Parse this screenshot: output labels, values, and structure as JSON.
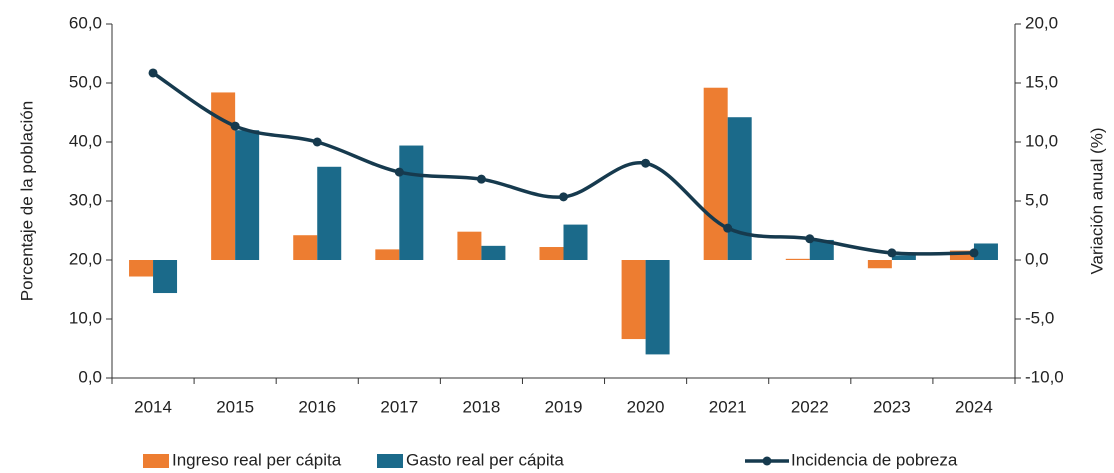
{
  "chart_data": {
    "type": "bar_line",
    "y_label": "Porcentaje de la población",
    "y2_label": "Variación anual (%)",
    "categories": [
      "2014",
      "2015",
      "2016",
      "2017",
      "2018",
      "2019",
      "2020",
      "2021",
      "2022",
      "2023",
      "2024"
    ],
    "series": [
      {
        "name": "Ingreso real per cápita",
        "type": "bar",
        "axis": "y2",
        "color": "#ed7d31",
        "values": [
          -1.4,
          14.2,
          2.1,
          0.9,
          2.4,
          1.1,
          -6.7,
          14.6,
          0.1,
          -0.7,
          0.8
        ]
      },
      {
        "name": "Gasto real per cápita",
        "type": "bar",
        "axis": "y2",
        "color": "#1b6a8a",
        "values": [
          -2.8,
          11.0,
          7.9,
          9.7,
          1.2,
          3.0,
          -8.0,
          12.1,
          1.7,
          0.4,
          1.4
        ]
      },
      {
        "name": "Incidencia de pobreza",
        "type": "line",
        "axis": "y",
        "color": "#163a4e",
        "values": [
          51.7,
          42.7,
          40.0,
          34.9,
          33.7,
          30.7,
          36.4,
          25.4,
          23.6,
          21.2,
          21.2
        ]
      }
    ],
    "ylim": [
      0,
      60
    ],
    "yticks": [
      {
        "value": 0,
        "label": "0,0"
      },
      {
        "value": 10,
        "label": "10,0"
      },
      {
        "value": 20,
        "label": "20,0"
      },
      {
        "value": 30,
        "label": "30,0"
      },
      {
        "value": 40,
        "label": "40,0"
      },
      {
        "value": 50,
        "label": "50,0"
      },
      {
        "value": 60,
        "label": "60,0"
      }
    ],
    "y2lim": [
      -10,
      20
    ],
    "y2ticks": [
      {
        "value": -10,
        "label": "-10,0"
      },
      {
        "value": -5,
        "label": "-5,0"
      },
      {
        "value": 0,
        "label": "0,0"
      },
      {
        "value": 5,
        "label": "5,0"
      },
      {
        "value": 10,
        "label": "10,0"
      },
      {
        "value": 15,
        "label": "15,0"
      },
      {
        "value": 20,
        "label": "20,0"
      }
    ],
    "legend": "bottom"
  }
}
